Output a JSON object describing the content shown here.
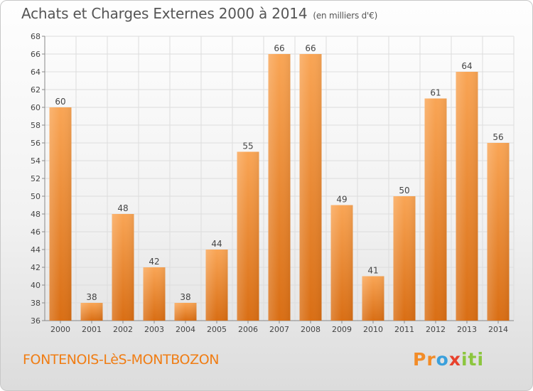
{
  "header": {
    "title": "Achats et Charges Externes 2000 à 2014",
    "unit": "(en milliers d'€)"
  },
  "footer": {
    "location": "FONTENOIS-LèS-MONTBOZON",
    "logo_text": "Proxiti"
  },
  "colors": {
    "bar_top": "#f9a555",
    "bar_bottom": "#d96e14",
    "location_text": "#f07d14"
  },
  "chart_data": {
    "type": "bar",
    "categories": [
      "2000",
      "2001",
      "2002",
      "2003",
      "2004",
      "2005",
      "2006",
      "2007",
      "2008",
      "2009",
      "2010",
      "2011",
      "2012",
      "2013",
      "2014"
    ],
    "values": [
      60,
      38,
      48,
      42,
      38,
      44,
      55,
      66,
      66,
      49,
      41,
      50,
      61,
      64,
      56
    ],
    "ylim": [
      36,
      68
    ],
    "yticks": [
      36,
      38,
      40,
      42,
      44,
      46,
      48,
      50,
      52,
      54,
      56,
      58,
      60,
      62,
      64,
      66,
      68
    ],
    "data_labels": true,
    "grid": true
  }
}
